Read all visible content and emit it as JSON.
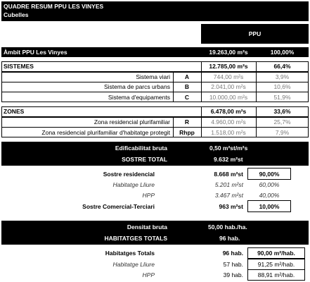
{
  "header": {
    "title": "QUADRE RESUM PPU LES VINYES",
    "subtitle": "Cubelles",
    "col_ppu": "PPU"
  },
  "ambit": {
    "label": "Àmbit PPU Les Vinyes",
    "value": "19.263,00 m²s",
    "pct": "100,00%"
  },
  "sistemes": {
    "label": "SISTEMES",
    "value": "12.785,00 m²s",
    "pct": "66,4%",
    "items": [
      {
        "label": "Sistema viari",
        "code": "A",
        "value": "744,00 m²s",
        "pct": "3,9%"
      },
      {
        "label": "Sistema de parcs urbans",
        "code": "B",
        "value": "2.041,00 m²s",
        "pct": "10,6%"
      },
      {
        "label": "Sistema d'equipaments",
        "code": "C",
        "value": "10.000,00 m²s",
        "pct": "51,9%"
      }
    ]
  },
  "zones": {
    "label": "ZONES",
    "value": "6.478,00 m²s",
    "pct": "33,6%",
    "items": [
      {
        "label": "Zona residencial plurifamiliar",
        "code": "R",
        "value": "4.960,00 m²s",
        "pct": "25,7%"
      },
      {
        "label": "Zona residencial plurifamiliar d'habitatge protegit",
        "code": "Rhpp",
        "value": "1.518,00 m²s",
        "pct": "7,9%"
      }
    ]
  },
  "edificabilitat": {
    "label": "Edificabilitat bruta",
    "value": "0,50 m²st/m²s"
  },
  "sostre_total": {
    "label": "SOSTRE TOTAL",
    "value": "9.632 m²st"
  },
  "sostre": {
    "residencial": {
      "label": "Sostre residencial",
      "value": "8.668 m²st",
      "pct": "90,00%"
    },
    "lliure": {
      "label": "Habitatge Lliure",
      "value": "5.201 m²st",
      "pct": "60,00%"
    },
    "hpp": {
      "label": "HPP",
      "value": "3.467 m²st",
      "pct": "40,00%"
    },
    "comercial": {
      "label": "Sostre Comercial-Terciari",
      "value": "963 m²st",
      "pct": "10,00%"
    }
  },
  "densitat": {
    "label": "Densitat bruta",
    "value": "50,00 hab./ha."
  },
  "habitatges_totals_header": {
    "label": "HABITATGES TOTALS",
    "value": "96 hab."
  },
  "habitatges": {
    "totals": {
      "label": "Habitatges Totals",
      "value": "96 hab.",
      "ratio": "90,00 m²/hab."
    },
    "lliure": {
      "label": "Habitatge Lliure",
      "value": "57 hab.",
      "ratio": "91,25 m²/hab."
    },
    "hpp": {
      "label": "HPP",
      "value": "39 hab.",
      "ratio": "88,91 m²/hab."
    }
  }
}
